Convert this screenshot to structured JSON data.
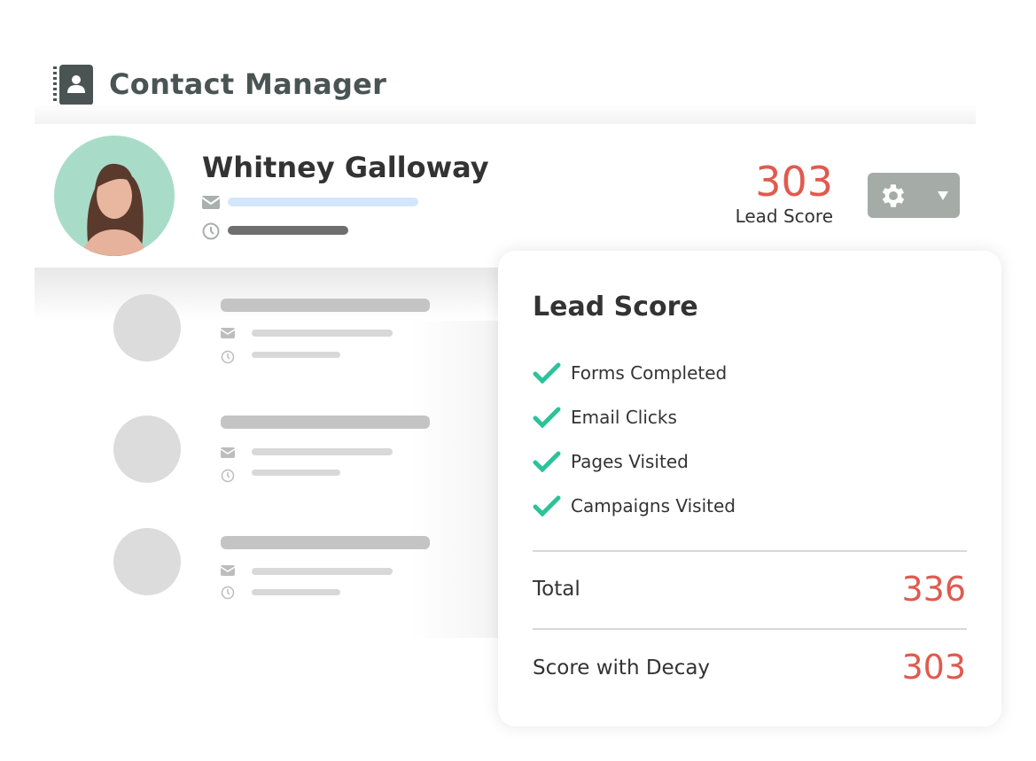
{
  "app": {
    "title": "Contact Manager",
    "icon": "contact-book-icon"
  },
  "contact": {
    "name": "Whitney Galloway",
    "lead_score": "303",
    "lead_score_label": "Lead Score"
  },
  "colors": {
    "accent_red": "#e05a4f",
    "check_green": "#2cc29a",
    "avatar_bg": "#a8dcc9",
    "button_gray": "#a5aca8"
  },
  "popup": {
    "title": "Lead Score",
    "items": [
      {
        "label": "Forms Completed"
      },
      {
        "label": "Email Clicks"
      },
      {
        "label": "Pages Visited"
      },
      {
        "label": "Campaigns Visited"
      }
    ],
    "total_label": "Total",
    "total_value": "336",
    "decay_label": "Score with Decay",
    "decay_value": "303"
  }
}
